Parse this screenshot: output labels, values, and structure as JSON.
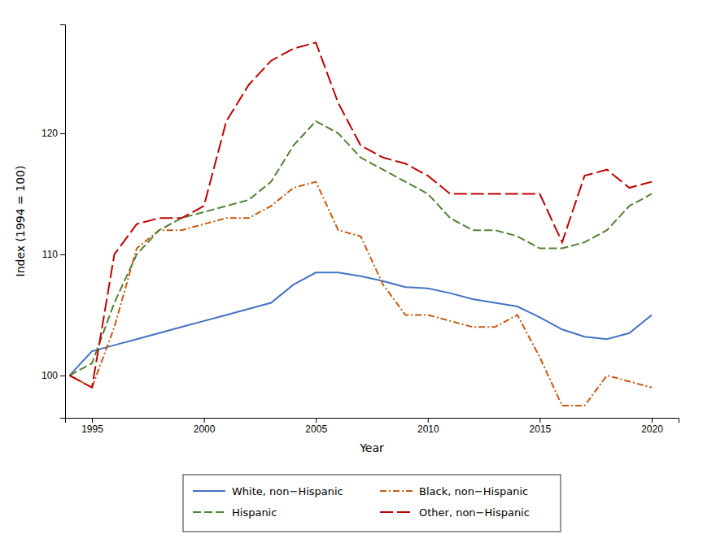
{
  "chart_data": {
    "type": "line",
    "xlabel": "Year",
    "ylabel": "Index (1994 = 100)",
    "xlim": [
      1993.8,
      2021.2
    ],
    "ylim": [
      96.5,
      129
    ],
    "xticks": [
      1995,
      2000,
      2005,
      2010,
      2015,
      2020
    ],
    "yticks": [
      100,
      110,
      120
    ],
    "grid": false,
    "legend": "bottom",
    "x": [
      1994,
      1995,
      1996,
      1997,
      1998,
      1999,
      2000,
      2001,
      2002,
      2003,
      2004,
      2005,
      2006,
      2007,
      2008,
      2009,
      2010,
      2011,
      2012,
      2013,
      2014,
      2015,
      2016,
      2017,
      2018,
      2019,
      2020
    ],
    "series": [
      {
        "name": "White, non−Hispanic",
        "color": "#4472C4",
        "line_style": "solid",
        "values": [
          100,
          102,
          102.5,
          103,
          103.5,
          104,
          104.5,
          105,
          105.5,
          106,
          107.5,
          108.5,
          108.5,
          108.2,
          107.8,
          107.3,
          107.2,
          106.8,
          106.3,
          106.0,
          105.7,
          104.8,
          103.8,
          103.2,
          103.0,
          103.5,
          105.0
        ]
      },
      {
        "name": "Black, non−Hispanic",
        "color": "#C55A11",
        "line_style": "dashdot",
        "values": [
          100,
          99.0,
          104.0,
          110.5,
          112.0,
          112.0,
          112.5,
          113.0,
          113.0,
          114.0,
          115.5,
          116.0,
          112.0,
          111.5,
          107.5,
          105.0,
          105.0,
          104.5,
          104.0,
          104.0,
          105.0,
          101.5,
          97.5,
          97.5,
          100.0,
          99.5,
          99.0
        ]
      },
      {
        "name": "Hispanic",
        "color": "#538135",
        "line_style": "dashed",
        "values": [
          100,
          101.0,
          106.0,
          110.0,
          112.0,
          113.0,
          113.5,
          114.0,
          114.5,
          116.0,
          119.0,
          121.0,
          120.0,
          118.0,
          117.0,
          116.0,
          115.0,
          113.0,
          112.0,
          112.0,
          111.5,
          110.5,
          110.5,
          111.0,
          112.0,
          114.0,
          115.0
        ]
      },
      {
        "name": "Other, non−Hispanic",
        "color": "#C00000",
        "line_style": "longdash",
        "values": [
          100,
          99.0,
          110.0,
          112.5,
          113.0,
          113.0,
          114.0,
          121.0,
          124.0,
          126.0,
          127.0,
          127.5,
          122.5,
          119.0,
          118.0,
          117.5,
          116.5,
          115.0,
          115.0,
          115.0,
          115.0,
          115.0,
          111.0,
          116.5,
          117.0,
          115.5,
          116.0
        ]
      }
    ]
  }
}
